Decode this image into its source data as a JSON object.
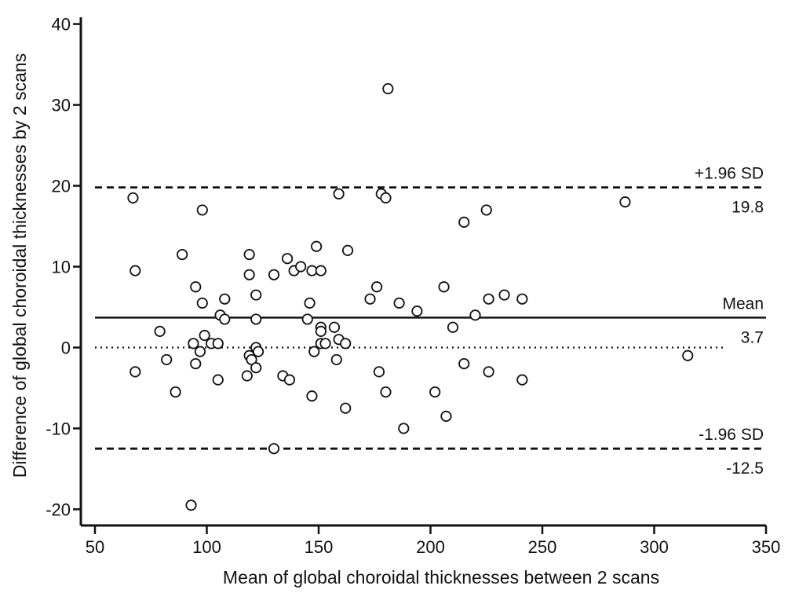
{
  "chart_data": {
    "type": "scatter",
    "title": "",
    "xlabel": "Mean of global choroidal thicknesses between 2 scans",
    "ylabel": "Difference of global choroidal thicknesses by 2 scans",
    "xlim": [
      50,
      350
    ],
    "ylim": [
      -22,
      42
    ],
    "xticks": [
      50,
      100,
      150,
      200,
      250,
      300,
      350
    ],
    "yticks": [
      -20,
      -10,
      0,
      10,
      20,
      30,
      40
    ],
    "xtick_labels": [
      "50",
      "100",
      "150",
      "200",
      "250",
      "300",
      "350"
    ],
    "ytick_labels": [
      "-20",
      "-10",
      "0",
      "10",
      "20",
      "30",
      "40"
    ],
    "grid": false,
    "zero_line": {
      "y": 0,
      "style": "dotted",
      "x_range": [
        50,
        331
      ]
    },
    "reference_lines": [
      {
        "y": 19.8,
        "style": "dashed",
        "label_top": "+1.96 SD",
        "label_bottom": "19.8"
      },
      {
        "y": 3.7,
        "style": "solid",
        "label_top": "Mean",
        "label_bottom": "3.7"
      },
      {
        "y": -12.5,
        "style": "dashed",
        "label_top": "-1.96 SD",
        "label_bottom": "-12.5"
      }
    ],
    "points": [
      {
        "x": 67,
        "y": 18.5
      },
      {
        "x": 68,
        "y": 9.5
      },
      {
        "x": 68,
        "y": -3
      },
      {
        "x": 79,
        "y": 2
      },
      {
        "x": 82,
        "y": -1.5
      },
      {
        "x": 86,
        "y": -5.5
      },
      {
        "x": 89,
        "y": 11.5
      },
      {
        "x": 93,
        "y": -19.5
      },
      {
        "x": 94,
        "y": 0.5
      },
      {
        "x": 95,
        "y": 7.5
      },
      {
        "x": 95,
        "y": -2
      },
      {
        "x": 97,
        "y": -0.5
      },
      {
        "x": 98,
        "y": 5.5
      },
      {
        "x": 99,
        "y": 1.5
      },
      {
        "x": 98,
        "y": 17
      },
      {
        "x": 102,
        "y": 0.5
      },
      {
        "x": 105,
        "y": 0.5
      },
      {
        "x": 105,
        "y": -4
      },
      {
        "x": 106,
        "y": 4
      },
      {
        "x": 108,
        "y": 6
      },
      {
        "x": 108,
        "y": 3.5
      },
      {
        "x": 118,
        "y": -3.5
      },
      {
        "x": 119,
        "y": 11.5
      },
      {
        "x": 119,
        "y": 9
      },
      {
        "x": 119,
        "y": -1
      },
      {
        "x": 120,
        "y": -1.5
      },
      {
        "x": 122,
        "y": -2.5
      },
      {
        "x": 122,
        "y": 6.5
      },
      {
        "x": 122,
        "y": 3.5
      },
      {
        "x": 122,
        "y": 0
      },
      {
        "x": 123,
        "y": -0.5
      },
      {
        "x": 130,
        "y": 9
      },
      {
        "x": 130,
        "y": -12.5
      },
      {
        "x": 134,
        "y": -3.5
      },
      {
        "x": 136,
        "y": 11
      },
      {
        "x": 137,
        "y": -4
      },
      {
        "x": 139,
        "y": 9.5
      },
      {
        "x": 142,
        "y": 10
      },
      {
        "x": 145,
        "y": 3.5
      },
      {
        "x": 146,
        "y": 5.5
      },
      {
        "x": 147,
        "y": 9.5
      },
      {
        "x": 147,
        "y": -6
      },
      {
        "x": 148,
        "y": -0.5
      },
      {
        "x": 149,
        "y": 12.5
      },
      {
        "x": 151,
        "y": 9.5
      },
      {
        "x": 151,
        "y": 2.5
      },
      {
        "x": 151,
        "y": 2
      },
      {
        "x": 151,
        "y": 0.5
      },
      {
        "x": 153,
        "y": 0.5
      },
      {
        "x": 157,
        "y": 2.5
      },
      {
        "x": 158,
        "y": -1.5
      },
      {
        "x": 159,
        "y": 1
      },
      {
        "x": 159,
        "y": 19
      },
      {
        "x": 162,
        "y": 0.5
      },
      {
        "x": 162,
        "y": -7.5
      },
      {
        "x": 163,
        "y": 12
      },
      {
        "x": 173,
        "y": 6
      },
      {
        "x": 176,
        "y": 7.5
      },
      {
        "x": 177,
        "y": -3
      },
      {
        "x": 178,
        "y": 19
      },
      {
        "x": 180,
        "y": -5.5
      },
      {
        "x": 180,
        "y": 18.5
      },
      {
        "x": 181,
        "y": 32
      },
      {
        "x": 186,
        "y": 5.5
      },
      {
        "x": 188,
        "y": -10
      },
      {
        "x": 194,
        "y": 4.5
      },
      {
        "x": 202,
        "y": -5.5
      },
      {
        "x": 206,
        "y": 7.5
      },
      {
        "x": 207,
        "y": -8.5
      },
      {
        "x": 210,
        "y": 2.5
      },
      {
        "x": 215,
        "y": 15.5
      },
      {
        "x": 215,
        "y": -2
      },
      {
        "x": 220,
        "y": 4
      },
      {
        "x": 225,
        "y": 17
      },
      {
        "x": 226,
        "y": 6
      },
      {
        "x": 226,
        "y": -3
      },
      {
        "x": 233,
        "y": 6.5
      },
      {
        "x": 241,
        "y": 6
      },
      {
        "x": 241,
        "y": -4
      },
      {
        "x": 287,
        "y": 18
      },
      {
        "x": 315,
        "y": -1
      }
    ]
  }
}
